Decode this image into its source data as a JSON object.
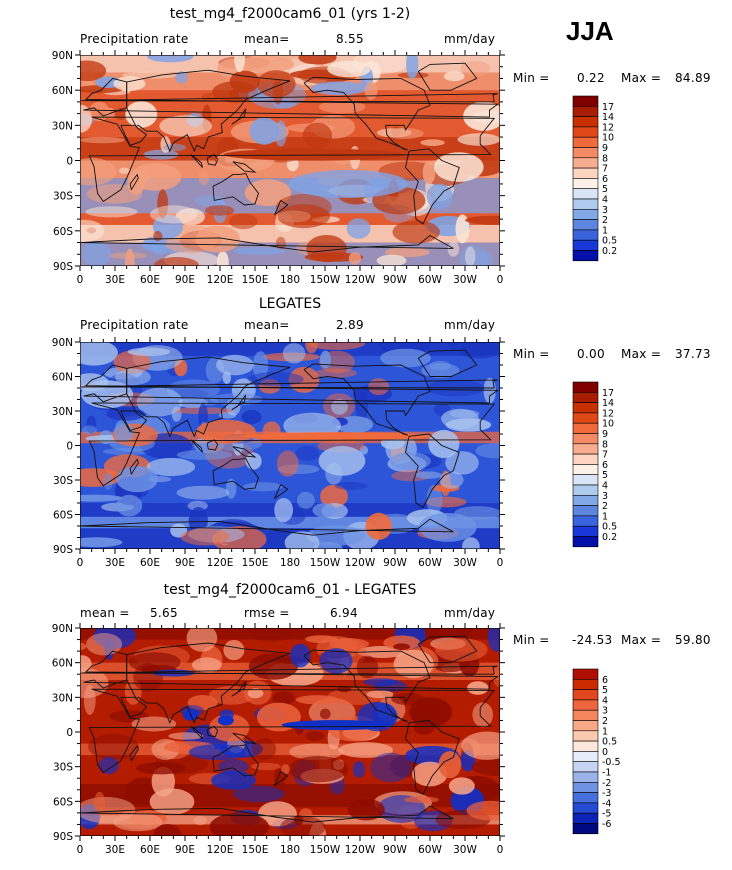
{
  "season": "JJA",
  "panels": [
    {
      "title": "test_mg4_f2000cam6_01 (yrs 1-2)",
      "left_label": "Precipitation rate",
      "stat1_label": "mean=",
      "stat1_value": "8.55",
      "stat2_label": "",
      "stat2_value": "",
      "units": "mm/day",
      "min_label": "Min =",
      "min_value": "0.22",
      "max_label": "Max =",
      "max_value": "84.89",
      "colorbar": {
        "levels": [
          "17",
          "14",
          "12",
          "10",
          "9",
          "8",
          "7",
          "6",
          "5",
          "4",
          "3",
          "2",
          "1",
          "0.5",
          "0.2"
        ],
        "colors": [
          "#800000",
          "#a81c00",
          "#c83000",
          "#e04818",
          "#f06a3c",
          "#f58a66",
          "#f9ad90",
          "#fcd4c0",
          "#fdf0e6",
          "#d9e4f6",
          "#aecaee",
          "#83a8e6",
          "#5c86e0",
          "#3a64de",
          "#1838d8",
          "#0010a8"
        ]
      },
      "map_palette": {
        "base": "#e45a30",
        "alt1": "#c03810",
        "alt2": "#f3a07e",
        "alt3": "#7fa3e6",
        "alt4": "#fbe6d8"
      }
    },
    {
      "title": "LEGATES",
      "left_label": "Precipitation rate",
      "stat1_label": "mean=",
      "stat1_value": "2.89",
      "stat2_label": "",
      "stat2_value": "",
      "units": "mm/day",
      "min_label": "Min =",
      "min_value": "0.00",
      "max_label": "Max =",
      "max_value": "37.73",
      "colorbar": {
        "levels": [
          "17",
          "14",
          "12",
          "10",
          "9",
          "8",
          "7",
          "6",
          "5",
          "4",
          "3",
          "2",
          "1",
          "0.5",
          "0.2"
        ],
        "colors": [
          "#800000",
          "#a81c00",
          "#c83000",
          "#e04818",
          "#f06a3c",
          "#f58a66",
          "#f9ad90",
          "#fcd4c0",
          "#fdf0e6",
          "#d9e4f6",
          "#aecaee",
          "#83a8e6",
          "#5c86e0",
          "#3a64de",
          "#1838d8",
          "#0010a8"
        ]
      },
      "map_palette": {
        "base": "#2d55d8",
        "alt1": "#1a34c0",
        "alt2": "#6f95e4",
        "alt3": "#f06a3c",
        "alt4": "#a9c3ee"
      }
    },
    {
      "title": "test_mg4_f2000cam6_01 - LEGATES",
      "left_label": "",
      "stat1_label": "mean =",
      "stat1_value": "5.65",
      "stat2_label": "rmse =",
      "stat2_value": "6.94",
      "units": "mm/day",
      "min_label": "Min =",
      "min_value": "-24.53",
      "max_label": "Max =",
      "max_value": "59.80",
      "colorbar": {
        "levels": [
          "6",
          "5",
          "4",
          "3",
          "2",
          "1",
          "0.5",
          "0",
          "-0.5",
          "-1",
          "-2",
          "-3",
          "-4",
          "-5",
          "-6"
        ],
        "colors": [
          "#b00e00",
          "#cc2a00",
          "#e2461e",
          "#ee643c",
          "#f4865e",
          "#f8a886",
          "#fbc8b0",
          "#fde6da",
          "#e6ecf8",
          "#c4d4f2",
          "#9ab4ea",
          "#6f92e2",
          "#4870dc",
          "#254ad4",
          "#0c22b8",
          "#000a80"
        ]
      },
      "map_palette": {
        "base": "#b41c00",
        "alt1": "#8c0c00",
        "alt2": "#e8603a",
        "alt3": "#1030c8",
        "alt4": "#f6a488"
      }
    }
  ],
  "axes": {
    "lat_labels": [
      "90N",
      "60N",
      "30N",
      "0",
      "30S",
      "60S",
      "90S"
    ],
    "lon_labels": [
      "0",
      "30E",
      "60E",
      "90E",
      "120E",
      "150E",
      "180",
      "150W",
      "120W",
      "90W",
      "60W",
      "30W",
      "0"
    ]
  },
  "icons": {
    "map": "contour-map-icon"
  }
}
